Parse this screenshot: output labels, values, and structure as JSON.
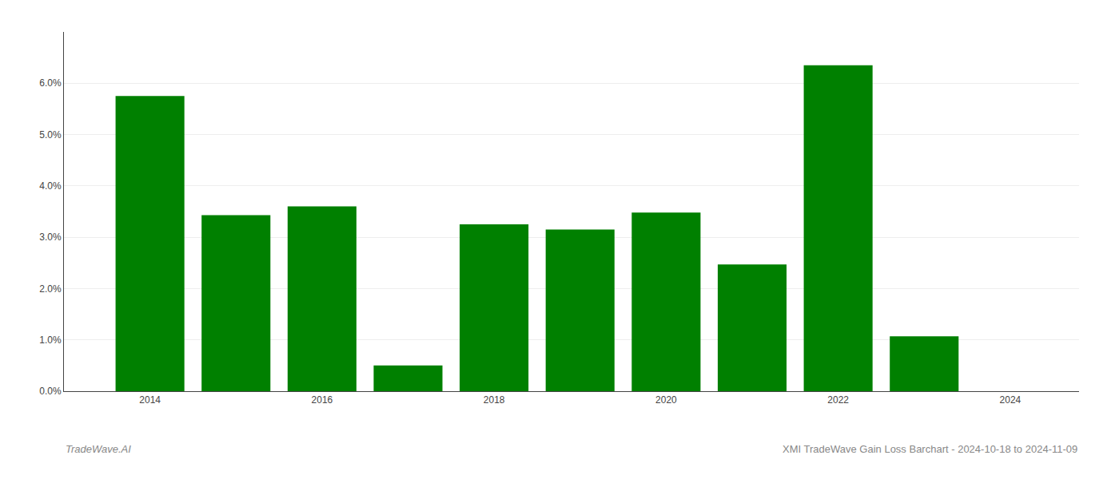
{
  "chart_data": {
    "type": "bar",
    "x": [
      2014,
      2015,
      2016,
      2017,
      2018,
      2019,
      2020,
      2021,
      2022,
      2023,
      2024
    ],
    "values": [
      5.75,
      3.43,
      3.6,
      0.5,
      3.25,
      3.15,
      3.48,
      2.47,
      6.35,
      1.07,
      0.0
    ],
    "color": "#008000",
    "xlim": [
      2013.0,
      2024.8
    ],
    "xticks": [
      2014,
      2016,
      2018,
      2020,
      2022,
      2024
    ],
    "ylim": [
      0,
      7.0
    ],
    "yticks": [
      {
        "value": 0.0,
        "label": "0.0%"
      },
      {
        "value": 1.0,
        "label": "1.0%"
      },
      {
        "value": 2.0,
        "label": "2.0%"
      },
      {
        "value": 3.0,
        "label": "3.0%"
      },
      {
        "value": 4.0,
        "label": "4.0%"
      },
      {
        "value": 5.0,
        "label": "5.0%"
      },
      {
        "value": 6.0,
        "label": "6.0%"
      }
    ],
    "grid": true,
    "annotations": [
      "TradeWave.AI",
      "XMI TradeWave Gain Loss Barchart - 2024-10-18 to 2024-11-09"
    ]
  }
}
